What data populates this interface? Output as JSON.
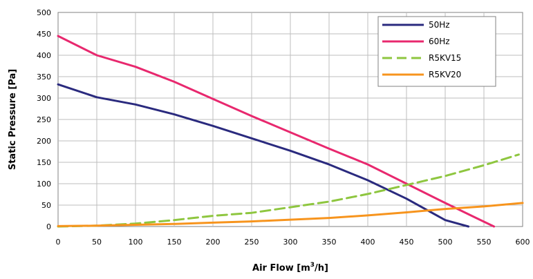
{
  "chart_data": {
    "type": "line",
    "title": "",
    "xlabel": "Air Flow [m",
    "xlabel_sup": "3",
    "xlabel_end": "/h]",
    "ylabel": "Static Pressure [Pa]",
    "xlim": [
      0,
      600
    ],
    "ylim": [
      0,
      500
    ],
    "grid": true,
    "legend_position": "top-right",
    "x_ticks": [
      "0",
      "50",
      "100",
      "150",
      "200",
      "250",
      "300",
      "350",
      "400",
      "450",
      "500",
      "550",
      "600"
    ],
    "y_ticks": [
      "0",
      "50",
      "100",
      "150",
      "200",
      "250",
      "300",
      "350",
      "400",
      "450",
      "500"
    ],
    "series": [
      {
        "name": "50Hz",
        "color": "#2a2a7e",
        "dash": "solid",
        "points": [
          [
            0,
            332
          ],
          [
            50,
            302
          ],
          [
            100,
            285
          ],
          [
            150,
            262
          ],
          [
            200,
            235
          ],
          [
            250,
            206
          ],
          [
            300,
            177
          ],
          [
            350,
            145
          ],
          [
            400,
            108
          ],
          [
            450,
            65
          ],
          [
            500,
            15
          ],
          [
            530,
            0
          ]
        ]
      },
      {
        "name": "60Hz",
        "color": "#e8286e",
        "dash": "solid",
        "points": [
          [
            0,
            445
          ],
          [
            50,
            400
          ],
          [
            100,
            373
          ],
          [
            150,
            338
          ],
          [
            200,
            298
          ],
          [
            250,
            258
          ],
          [
            300,
            220
          ],
          [
            350,
            182
          ],
          [
            400,
            145
          ],
          [
            450,
            100
          ],
          [
            500,
            55
          ],
          [
            540,
            20
          ],
          [
            563,
            0
          ]
        ]
      },
      {
        "name": "R5KV15",
        "color": "#8ec63f",
        "dash": "dashed",
        "points": [
          [
            0,
            0
          ],
          [
            50,
            2
          ],
          [
            100,
            7
          ],
          [
            150,
            15
          ],
          [
            200,
            25
          ],
          [
            250,
            32
          ],
          [
            300,
            45
          ],
          [
            350,
            58
          ],
          [
            400,
            76
          ],
          [
            450,
            97
          ],
          [
            500,
            118
          ],
          [
            550,
            143
          ],
          [
            595,
            168
          ]
        ]
      },
      {
        "name": "R5KV20",
        "color": "#f7941d",
        "dash": "solid",
        "points": [
          [
            0,
            1
          ],
          [
            50,
            2
          ],
          [
            100,
            4
          ],
          [
            150,
            6
          ],
          [
            200,
            9
          ],
          [
            250,
            12
          ],
          [
            300,
            16
          ],
          [
            350,
            20
          ],
          [
            400,
            26
          ],
          [
            450,
            33
          ],
          [
            500,
            41
          ],
          [
            550,
            47
          ],
          [
            600,
            55
          ]
        ]
      }
    ]
  }
}
